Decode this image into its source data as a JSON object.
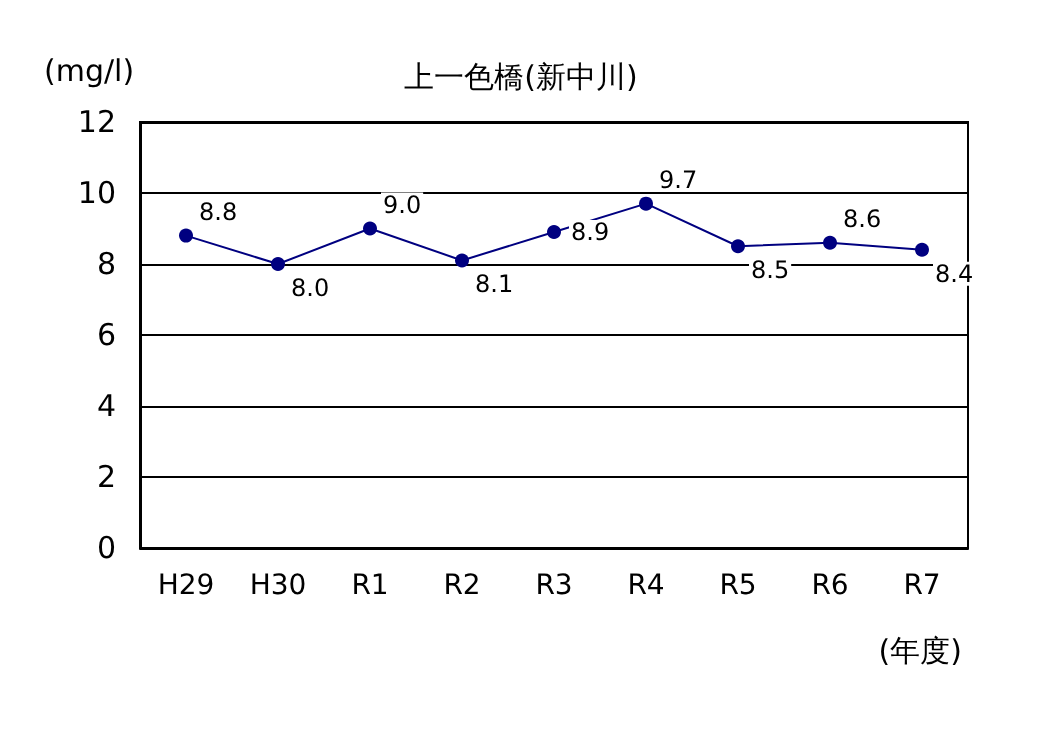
{
  "chart_data": {
    "type": "line",
    "title": "上一色橋(新中川)",
    "ylabel": "(mg/l)",
    "xlabel": "(年度)",
    "categories": [
      "H29",
      "H30",
      "R1",
      "R2",
      "R3",
      "R4",
      "R5",
      "R6",
      "R7"
    ],
    "series": [
      {
        "color": "#000080",
        "values": [
          8.8,
          8.0,
          9.0,
          8.1,
          8.9,
          9.7,
          8.5,
          8.6,
          8.4
        ],
        "value_labels": [
          "8.8",
          "8.0",
          "9.0",
          "8.1",
          "8.9",
          "9.7",
          "8.5",
          "8.6",
          "8.4"
        ]
      }
    ],
    "ylim": [
      0,
      12
    ],
    "yticks": [
      0,
      2,
      4,
      6,
      8,
      10,
      12
    ],
    "grid": "y",
    "marker": "circle",
    "line_style": "solid"
  }
}
